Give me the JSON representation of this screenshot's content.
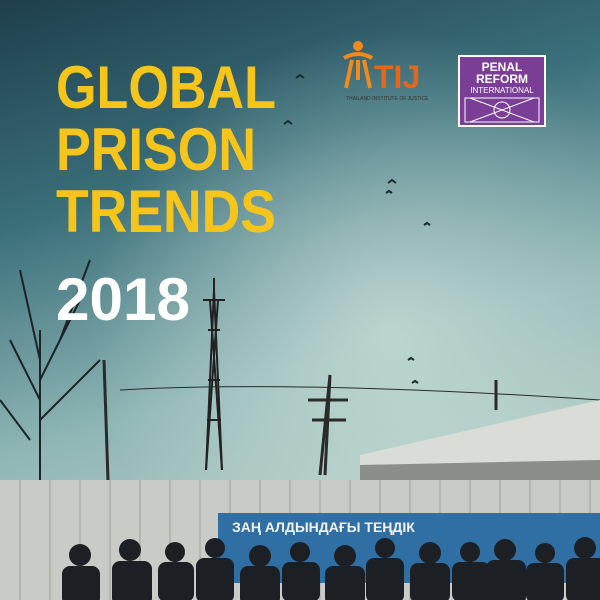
{
  "cover": {
    "title_lines": [
      "GLOBAL",
      "PRISON",
      "TRENDS"
    ],
    "year": "2018"
  },
  "logos": {
    "tij": {
      "name": "TIJ",
      "subtitle": "THAILAND INSTITUTE OF JUSTICE"
    },
    "pri": {
      "lines": [
        "PENAL",
        "REFORM",
        "INTERNATIONAL"
      ]
    }
  },
  "sign": {
    "text": "ЗАҢ АЛДЫНДАҒЫ ТЕҢДІК"
  }
}
